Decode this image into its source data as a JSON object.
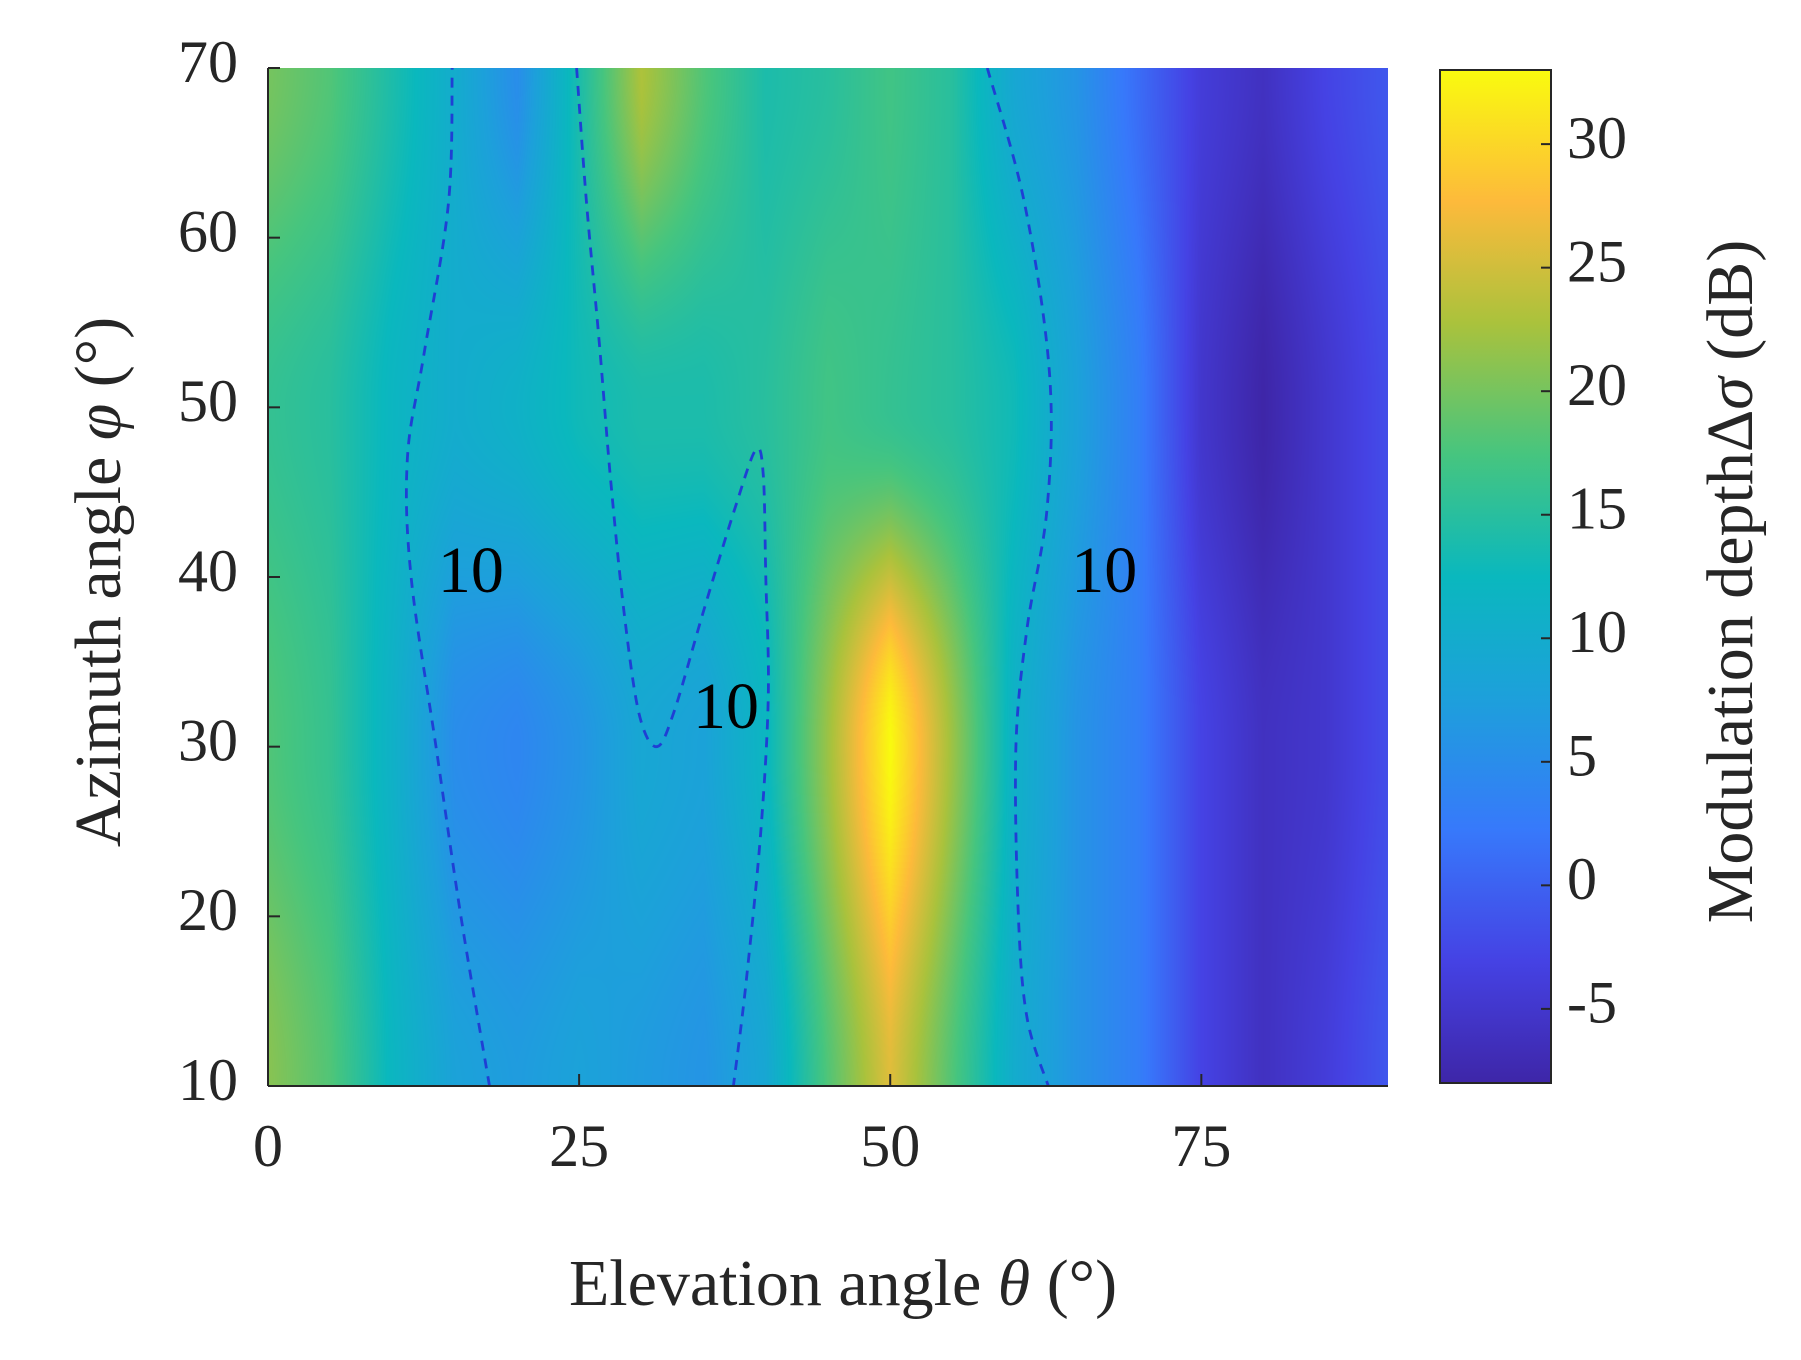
{
  "chart_data": {
    "type": "heatmap",
    "xlabel": {
      "prefix": "Elevation angle ",
      "symbol": "θ",
      "suffix": " (°)"
    },
    "ylabel": {
      "prefix": "Azimuth angle ",
      "symbol": "φ",
      "suffix": " (°)"
    },
    "colorbar_label": {
      "prefix": "Modulation depthΔ",
      "symbol": "σ",
      "suffix": " (dB)"
    },
    "xlim": [
      0,
      90
    ],
    "ylim": [
      10,
      70
    ],
    "clim": [
      -8,
      33
    ],
    "x_ticks": [
      0,
      25,
      50,
      75
    ],
    "x_tick_labels": [
      "0",
      "25",
      "50",
      "75"
    ],
    "y_ticks": [
      10,
      20,
      30,
      40,
      50,
      60,
      70
    ],
    "y_tick_labels": [
      "10",
      "20",
      "30",
      "40",
      "50",
      "60",
      "70"
    ],
    "colorbar_ticks": [
      -5,
      0,
      5,
      10,
      15,
      20,
      25,
      30
    ],
    "colorbar_tick_labels": [
      "-5",
      "0",
      "5",
      "10",
      "15",
      "20",
      "25",
      "30"
    ],
    "colormap": "parula",
    "grid": false,
    "z_profile_by_elevation": {
      "x": [
        0,
        5,
        10,
        15,
        20,
        25,
        30,
        35,
        40,
        45,
        50,
        55,
        60,
        65,
        70,
        75,
        80,
        85,
        90
      ],
      "z_at_phi_10": [
        21,
        18,
        12,
        8,
        7,
        8,
        7,
        6,
        9,
        18,
        26,
        18,
        10,
        6,
        3,
        -3,
        -6,
        -4,
        -1
      ],
      "z_at_phi_30": [
        18,
        16,
        11,
        5,
        4,
        6,
        9,
        8,
        12,
        22,
        33,
        22,
        11,
        6,
        3,
        -3,
        -6,
        -5,
        -2
      ],
      "z_at_phi_50": [
        16,
        15,
        12,
        10,
        11,
        13,
        14,
        14,
        15,
        17,
        16,
        15,
        13,
        8,
        3,
        -5,
        -8,
        -5,
        -2
      ],
      "z_at_phi_70": [
        20,
        18,
        14,
        10,
        5,
        14,
        23,
        18,
        14,
        15,
        17,
        15,
        9,
        6,
        1,
        -4,
        -6,
        -3,
        -1
      ]
    },
    "contours": [
      {
        "level": 10,
        "label": "10",
        "style": "dashed",
        "color": "#1f3fd4",
        "path": [
          [
            17.8,
            10
          ],
          [
            15.5,
            20
          ],
          [
            13.5,
            30
          ],
          [
            11.5,
            40
          ],
          [
            11.2,
            47
          ],
          [
            12.5,
            53
          ],
          [
            14.5,
            62
          ],
          [
            14.8,
            70
          ]
        ]
      },
      {
        "level": 10,
        "label": "10",
        "style": "dashed",
        "color": "#1f3fd4",
        "path": [
          [
            24.8,
            70
          ],
          [
            25.6,
            62
          ],
          [
            26.6,
            54
          ],
          [
            27.5,
            46
          ],
          [
            28.6,
            38
          ],
          [
            29.8,
            32
          ],
          [
            31.2,
            30
          ],
          [
            32.6,
            32
          ],
          [
            35.0,
            38
          ],
          [
            37.5,
            44
          ],
          [
            39.2,
            47.5
          ],
          [
            39.8,
            46
          ],
          [
            40.0,
            40
          ],
          [
            40.2,
            33
          ],
          [
            39.6,
            25
          ],
          [
            38.4,
            16
          ],
          [
            37.4,
            10
          ]
        ]
      },
      {
        "level": 10,
        "label": "10",
        "style": "dashed",
        "color": "#1f3fd4",
        "path": [
          [
            57.8,
            70
          ],
          [
            60.8,
            62
          ],
          [
            62.8,
            52
          ],
          [
            62.6,
            44
          ],
          [
            61.0,
            37
          ],
          [
            60.1,
            30
          ],
          [
            60.3,
            20
          ],
          [
            61.0,
            14
          ],
          [
            62.7,
            10
          ]
        ]
      }
    ],
    "contour_labels": [
      {
        "text": "10",
        "x": 16.3,
        "y": 40
      },
      {
        "text": "10",
        "x": 36.8,
        "y": 32
      },
      {
        "text": "10",
        "x": 67.2,
        "y": 40
      }
    ]
  }
}
